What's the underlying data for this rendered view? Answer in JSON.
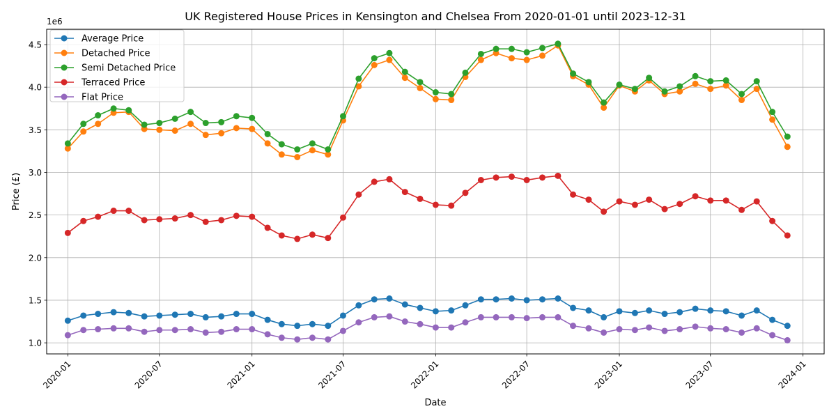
{
  "chart_data": {
    "type": "line",
    "title": "UK Registered House Prices in Kensington and Chelsea From 2020-01-01 until 2023-12-31",
    "xlabel": "Date",
    "ylabel": "Price (£)",
    "y_offset_label": "1e6",
    "ylim": [
      0.87,
      4.68
    ],
    "xlim": [
      "2019-11-20",
      "2024-02-12"
    ],
    "grid": true,
    "legend_position": "upper-left",
    "x_ticks": [
      "2020-01",
      "2020-07",
      "2021-01",
      "2021-07",
      "2022-01",
      "2022-07",
      "2023-01",
      "2023-07",
      "2024-01"
    ],
    "y_ticks": [
      "1.0",
      "1.5",
      "2.0",
      "2.5",
      "3.0",
      "3.5",
      "4.0",
      "4.5"
    ],
    "x": [
      "2020-01",
      "2020-02",
      "2020-03",
      "2020-04",
      "2020-05",
      "2020-06",
      "2020-07",
      "2020-08",
      "2020-09",
      "2020-10",
      "2020-11",
      "2020-12",
      "2021-01",
      "2021-02",
      "2021-03",
      "2021-04",
      "2021-05",
      "2021-06",
      "2021-07",
      "2021-08",
      "2021-09",
      "2021-10",
      "2021-11",
      "2021-12",
      "2022-01",
      "2022-02",
      "2022-03",
      "2022-04",
      "2022-05",
      "2022-06",
      "2022-07",
      "2022-08",
      "2022-09",
      "2022-10",
      "2022-11",
      "2022-12",
      "2023-01",
      "2023-02",
      "2023-03",
      "2023-04",
      "2023-05",
      "2023-06",
      "2023-07",
      "2023-08",
      "2023-09",
      "2023-10",
      "2023-11",
      "2023-12"
    ],
    "series": [
      {
        "name": "Average Price",
        "color": "#1f77b4",
        "values": [
          1.26,
          1.32,
          1.34,
          1.36,
          1.35,
          1.31,
          1.32,
          1.33,
          1.34,
          1.3,
          1.31,
          1.34,
          1.34,
          1.27,
          1.22,
          1.2,
          1.22,
          1.2,
          1.32,
          1.44,
          1.51,
          1.52,
          1.45,
          1.41,
          1.37,
          1.38,
          1.44,
          1.51,
          1.51,
          1.52,
          1.5,
          1.51,
          1.52,
          1.41,
          1.38,
          1.3,
          1.37,
          1.35,
          1.38,
          1.34,
          1.36,
          1.4,
          1.38,
          1.37,
          1.32,
          1.38,
          1.27,
          1.2
        ]
      },
      {
        "name": "Detached Price",
        "color": "#ff7f0e",
        "values": [
          3.28,
          3.48,
          3.57,
          3.7,
          3.71,
          3.51,
          3.5,
          3.49,
          3.57,
          3.44,
          3.46,
          3.52,
          3.51,
          3.34,
          3.21,
          3.18,
          3.26,
          3.21,
          3.61,
          4.01,
          4.26,
          4.32,
          4.11,
          3.99,
          3.86,
          3.85,
          4.12,
          4.32,
          4.4,
          4.34,
          4.32,
          4.37,
          4.49,
          4.13,
          4.03,
          3.76,
          4.02,
          3.95,
          4.08,
          3.92,
          3.95,
          4.04,
          3.98,
          4.02,
          3.85,
          3.98,
          3.62,
          3.3
        ]
      },
      {
        "name": "Semi Detached Price",
        "color": "#2ca02c",
        "values": [
          3.34,
          3.57,
          3.67,
          3.75,
          3.73,
          3.56,
          3.58,
          3.63,
          3.71,
          3.58,
          3.59,
          3.66,
          3.64,
          3.45,
          3.33,
          3.27,
          3.34,
          3.27,
          3.66,
          4.1,
          4.34,
          4.4,
          4.18,
          4.06,
          3.94,
          3.92,
          4.17,
          4.39,
          4.45,
          4.45,
          4.41,
          4.46,
          4.51,
          4.16,
          4.06,
          3.82,
          4.03,
          3.98,
          4.11,
          3.95,
          4.01,
          4.13,
          4.07,
          4.08,
          3.92,
          4.07,
          3.71,
          3.42
        ]
      },
      {
        "name": "Terraced Price",
        "color": "#d62728",
        "values": [
          2.29,
          2.43,
          2.48,
          2.55,
          2.55,
          2.44,
          2.45,
          2.46,
          2.5,
          2.42,
          2.44,
          2.49,
          2.48,
          2.35,
          2.26,
          2.22,
          2.27,
          2.23,
          2.47,
          2.74,
          2.89,
          2.92,
          2.77,
          2.69,
          2.62,
          2.61,
          2.76,
          2.91,
          2.94,
          2.95,
          2.91,
          2.94,
          2.96,
          2.74,
          2.68,
          2.54,
          2.66,
          2.62,
          2.68,
          2.57,
          2.63,
          2.72,
          2.67,
          2.67,
          2.56,
          2.66,
          2.43,
          2.26
        ]
      },
      {
        "name": "Flat Price",
        "color": "#9467bd",
        "values": [
          1.09,
          1.15,
          1.16,
          1.17,
          1.17,
          1.13,
          1.15,
          1.15,
          1.16,
          1.12,
          1.13,
          1.16,
          1.16,
          1.1,
          1.06,
          1.04,
          1.06,
          1.04,
          1.14,
          1.24,
          1.3,
          1.31,
          1.25,
          1.22,
          1.18,
          1.18,
          1.24,
          1.3,
          1.3,
          1.3,
          1.29,
          1.3,
          1.3,
          1.2,
          1.17,
          1.12,
          1.16,
          1.15,
          1.18,
          1.14,
          1.16,
          1.19,
          1.17,
          1.16,
          1.12,
          1.17,
          1.09,
          1.03
        ]
      }
    ]
  }
}
